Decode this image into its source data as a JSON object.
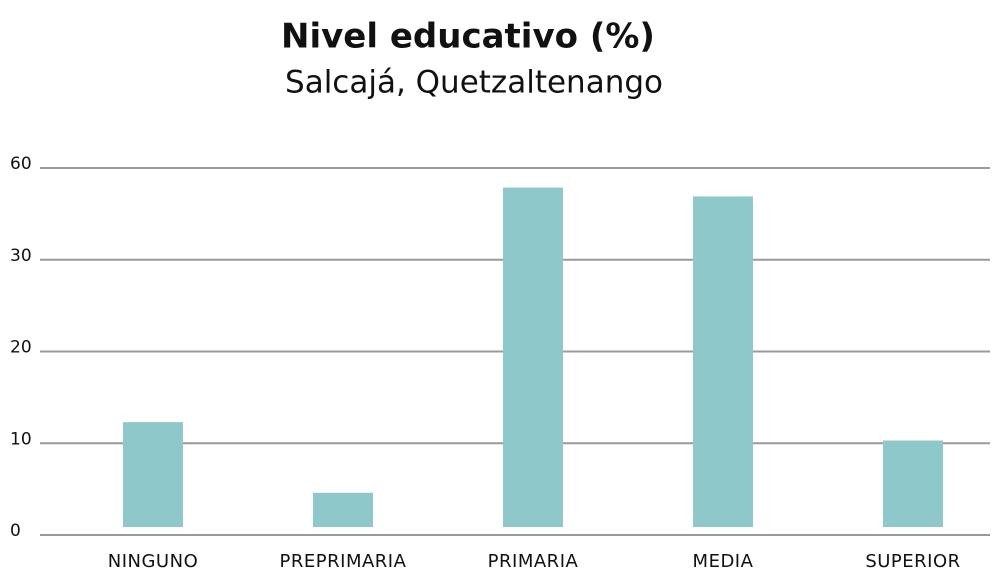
{
  "chart_data": {
    "type": "bar",
    "title": "Nivel educativo (%)",
    "subtitle": "Salcajá, Quetzaltenango",
    "categories": [
      "NINGUNO",
      "PREPRIMARIA",
      "PRIMARIA",
      "MEDIA",
      "SUPERIOR"
    ],
    "values": [
      12.3,
      4.6,
      53.6,
      50.7,
      10.3
    ],
    "color": "#8ec8cb",
    "ylim": [
      0,
      60
    ],
    "yticks": [
      0,
      10,
      20,
      30,
      60
    ],
    "grid": true
  }
}
